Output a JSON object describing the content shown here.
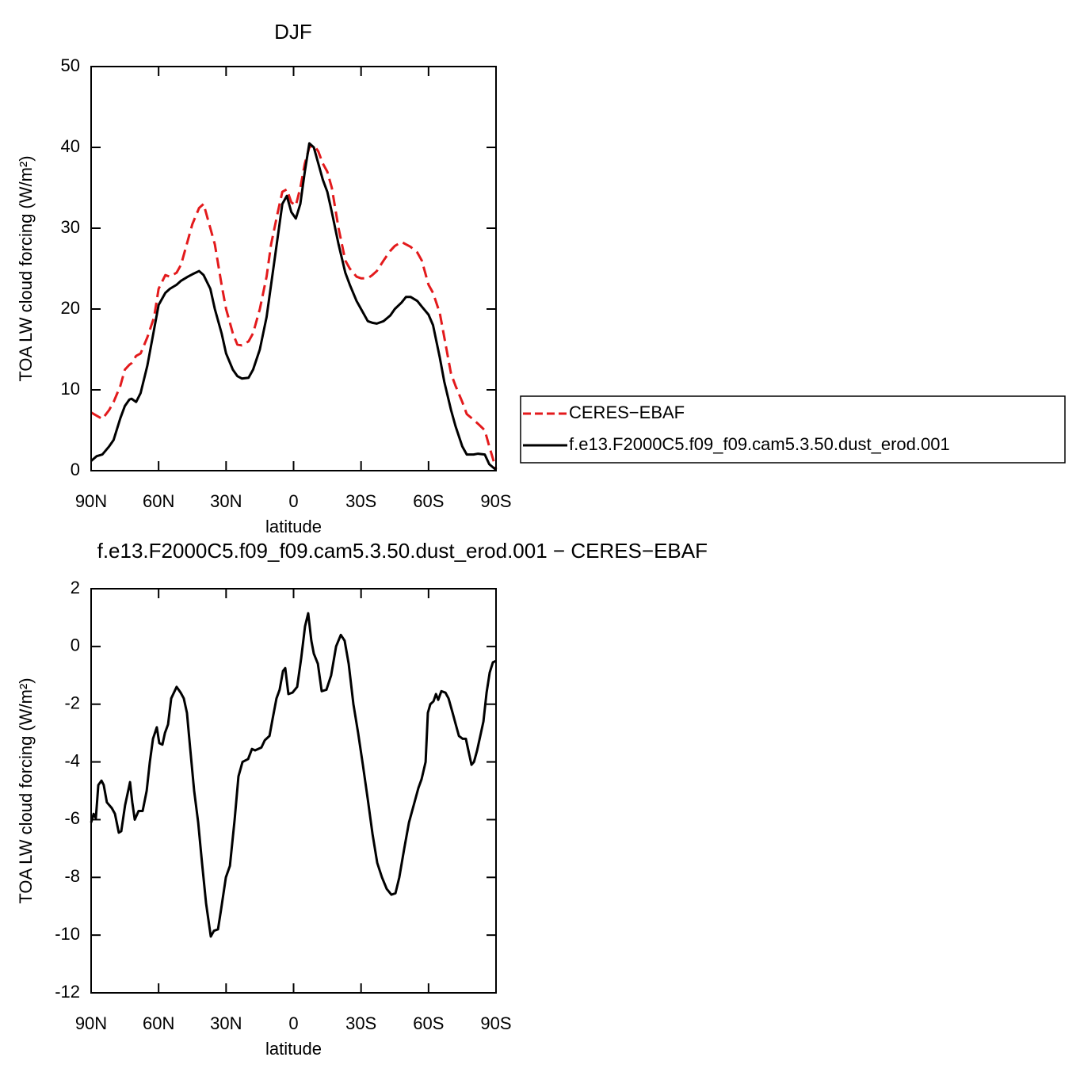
{
  "chart_data": [
    {
      "type": "line",
      "title": "DJF",
      "xlabel": "latitude",
      "ylabel": "TOA LW cloud forcing (W/m²)",
      "x": [
        90,
        87.5,
        85,
        82,
        80,
        77,
        75,
        73,
        72,
        70,
        68,
        65,
        62,
        60,
        57,
        55,
        52,
        50,
        47,
        45,
        42,
        40,
        37,
        35,
        32,
        30,
        27,
        25,
        23,
        20,
        18,
        15,
        12,
        10,
        7,
        5,
        3,
        1,
        -1,
        -3,
        -5,
        -7,
        -9,
        -11,
        -13,
        -15,
        -17,
        -20,
        -23,
        -25,
        -28,
        -30,
        -33,
        -35,
        -37,
        -40,
        -43,
        -45,
        -48,
        -50,
        -52,
        -55,
        -57,
        -60,
        -62,
        -65,
        -67,
        -70,
        -72,
        -75,
        -77,
        -80,
        -82,
        -85,
        -87,
        -90
      ],
      "xlim": [
        90,
        -90
      ],
      "xticks": [
        {
          "value": 90,
          "label": "90N"
        },
        {
          "value": 60,
          "label": "60N"
        },
        {
          "value": 30,
          "label": "30N"
        },
        0,
        {
          "value": -30,
          "label": "30S"
        },
        {
          "value": -60,
          "label": "60S"
        },
        {
          "value": -90,
          "label": "90S"
        }
      ],
      "ylim": [
        0,
        50
      ],
      "yticks": [
        0,
        10,
        20,
        30,
        40,
        50
      ],
      "series": [
        {
          "name": "CERES−EBAF",
          "color": "#e31a1c",
          "dashed": true,
          "values": [
            7.2,
            6.8,
            6.4,
            7.5,
            8.5,
            10.5,
            12.5,
            13.1,
            13.3,
            14.2,
            14.5,
            16.5,
            19,
            22.5,
            24.2,
            24,
            24.5,
            25.5,
            28.5,
            30.5,
            32.5,
            33,
            30,
            28,
            23,
            20,
            17,
            15.6,
            15.5,
            16,
            17,
            20,
            24,
            28,
            32,
            34.5,
            34.8,
            33.2,
            32.8,
            35,
            38,
            40,
            40.3,
            39.5,
            38,
            37,
            35,
            30,
            26,
            25,
            24,
            23.8,
            23.8,
            24.2,
            24.7,
            26,
            27.2,
            27.8,
            28.3,
            28,
            27.7,
            27,
            26,
            23,
            22,
            19.5,
            16.5,
            12,
            10.5,
            8.5,
            7,
            6.3,
            5.8,
            5,
            3,
            0.2
          ]
        },
        {
          "name": "f.e13.F2000C5.f09_f09.cam5.3.50.dust_erod.001",
          "color": "#000000",
          "dashed": false,
          "values": [
            1.2,
            1.8,
            2,
            3,
            3.8,
            6.5,
            8,
            8.8,
            8.9,
            8.5,
            9.6,
            13,
            17.5,
            20.5,
            22,
            22.5,
            23,
            23.5,
            24,
            24.3,
            24.7,
            24.2,
            22.5,
            20,
            17,
            14.5,
            12.5,
            11.7,
            11.4,
            11.5,
            12.5,
            15,
            19,
            23,
            29,
            33,
            34,
            32,
            31.2,
            33,
            37,
            40.5,
            40,
            38,
            36,
            34.5,
            32,
            28,
            24.5,
            23,
            21,
            20,
            18.5,
            18.3,
            18.2,
            18.5,
            19.2,
            20,
            20.8,
            21.5,
            21.5,
            21,
            20.3,
            19.3,
            18,
            14,
            11,
            7.5,
            5.5,
            3,
            2,
            2,
            2.1,
            2,
            0.8,
            0.1
          ]
        }
      ]
    },
    {
      "type": "line",
      "title": "f.e13.F2000C5.f09_f09.cam5.3.50.dust_erod.001  −  CERES−EBAF",
      "xlabel": "latitude",
      "ylabel": "TOA LW cloud forcing (W/m²)",
      "x": [
        90.0,
        88.9,
        87.9,
        86.8,
        85.4,
        84.4,
        83.0,
        80.8,
        79.4,
        77.7,
        76.6,
        74.9,
        72.7,
        71.7,
        70.6,
        68.9,
        67.1,
        65.3,
        63.9,
        62.5,
        60.8,
        59.7,
        58.3,
        57.2,
        55.8,
        54.4,
        52.0,
        50.2,
        48.8,
        47.4,
        46.0,
        44.2,
        42.4,
        40.7,
        38.9,
        36.8,
        35.4,
        33.6,
        32.2,
        30.1,
        28.3,
        26.2,
        24.5,
        22.7,
        20.2,
        18.5,
        17.1,
        14.3,
        12.8,
        10.7,
        9.3,
        7.6,
        6.2,
        4.7,
        3.7,
        2.3,
        0.5,
        -1.6,
        -3.4,
        -5.1,
        -6.5,
        -7.9,
        -9.0,
        -10.8,
        -12.5,
        -14.6,
        -16.7,
        -18.9,
        -21.0,
        -22.7,
        -24.5,
        -26.6,
        -28.7,
        -30.8,
        -33.0,
        -35.1,
        -37.2,
        -39.3,
        -41.4,
        -43.5,
        -45.3,
        -47.0,
        -49.2,
        -51.3,
        -53.4,
        -55.5,
        -56.9,
        -58.7,
        -59.7,
        -60.8,
        -62.2,
        -63.3,
        -64.3,
        -65.7,
        -67.5,
        -68.9,
        -70.7,
        -72.1,
        -73.5,
        -75.2,
        -76.6,
        -77.7,
        -79.1,
        -80.2,
        -81.6,
        -83.0,
        -84.4,
        -85.8,
        -87.2,
        -88.6,
        -90.0
      ],
      "values": [
        -6.1,
        -5.8,
        -5.95,
        -4.8,
        -4.65,
        -4.8,
        -5.4,
        -5.6,
        -5.8,
        -6.45,
        -6.4,
        -5.5,
        -4.7,
        -5.4,
        -6.0,
        -5.7,
        -5.7,
        -5.0,
        -4.0,
        -3.2,
        -2.8,
        -3.35,
        -3.4,
        -3.0,
        -2.7,
        -1.8,
        -1.4,
        -1.6,
        -1.8,
        -2.3,
        -3.5,
        -5.0,
        -6.1,
        -7.5,
        -8.9,
        -10.05,
        -9.85,
        -9.8,
        -9.1,
        -8.0,
        -7.6,
        -6.0,
        -4.5,
        -4.0,
        -3.9,
        -3.55,
        -3.6,
        -3.5,
        -3.25,
        -3.1,
        -2.5,
        -1.8,
        -1.5,
        -0.85,
        -0.75,
        -1.65,
        -1.6,
        -1.4,
        -0.4,
        0.7,
        1.15,
        0.2,
        -0.25,
        -0.6,
        -1.55,
        -1.5,
        -1.0,
        0.0,
        0.4,
        0.2,
        -0.6,
        -2.0,
        -3.0,
        -4.1,
        -5.3,
        -6.5,
        -7.5,
        -8.0,
        -8.4,
        -8.6,
        -8.55,
        -8.0,
        -7.0,
        -6.1,
        -5.5,
        -4.9,
        -4.6,
        -4.0,
        -2.3,
        -2.0,
        -1.9,
        -1.65,
        -1.85,
        -1.55,
        -1.6,
        -1.8,
        -2.3,
        -2.7,
        -3.1,
        -3.2,
        -3.2,
        -3.6,
        -4.1,
        -4.0,
        -3.6,
        -3.1,
        -2.6,
        -1.6,
        -0.9,
        -0.55,
        -0.5
      ],
      "color": "#000000",
      "xlim": [
        90,
        -90
      ],
      "xticks": [
        {
          "value": 90,
          "label": "90N"
        },
        {
          "value": 60,
          "label": "60N"
        },
        {
          "value": 30,
          "label": "30N"
        },
        0,
        {
          "value": -30,
          "label": "30S"
        },
        {
          "value": -60,
          "label": "60S"
        },
        {
          "value": -90,
          "label": "90S"
        }
      ],
      "ylim": [
        -12,
        2
      ],
      "yticks": [
        -12,
        -10,
        -8,
        -6,
        -4,
        -2,
        0,
        2
      ]
    }
  ]
}
